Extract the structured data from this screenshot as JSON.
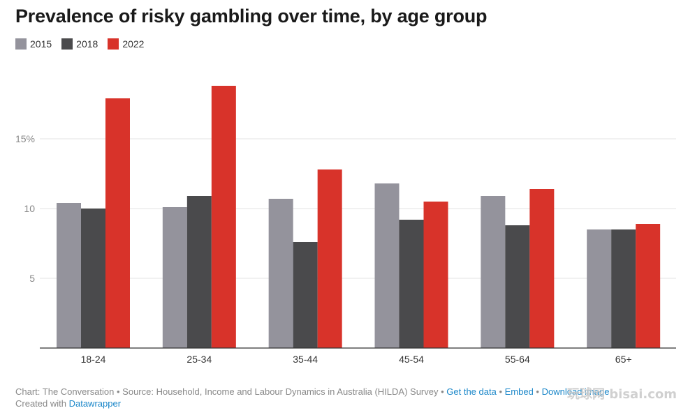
{
  "title": "Prevalence of risky gambling over time, by age group",
  "colors": {
    "2015": "#94939c",
    "2018": "#4a4a4c",
    "2022": "#d8332a"
  },
  "chart_data": {
    "type": "bar",
    "title": "Prevalence of risky gambling over time, by age group",
    "categories": [
      "18-24",
      "25-34",
      "35-44",
      "45-54",
      "55-64",
      "65+"
    ],
    "series": [
      {
        "name": "2015",
        "values": [
          10.4,
          10.1,
          10.7,
          11.8,
          10.9,
          8.5
        ]
      },
      {
        "name": "2018",
        "values": [
          10.0,
          10.9,
          7.6,
          9.2,
          8.8,
          8.5
        ]
      },
      {
        "name": "2022",
        "values": [
          17.9,
          18.8,
          12.8,
          10.5,
          11.4,
          8.9
        ]
      }
    ],
    "yticks": [
      "5",
      "10",
      "15%"
    ],
    "ytick_values": [
      5,
      10,
      15
    ],
    "ylim": [
      0,
      20
    ],
    "xlabel": "",
    "ylabel": "",
    "grid": true,
    "legend": "top-left"
  },
  "footer": {
    "line1_prefix": "Chart: The Conversation • Source: Household, Income and Labour Dynamics in Australia (HILDA) Survey • ",
    "get_data": "Get the data",
    "sep1": " • ",
    "embed": "Embed",
    "sep2": " • ",
    "download": "Download image",
    "line2_prefix": "Created with ",
    "datawrapper": "Datawrapper"
  },
  "watermark": "玩球网 bisai.com"
}
